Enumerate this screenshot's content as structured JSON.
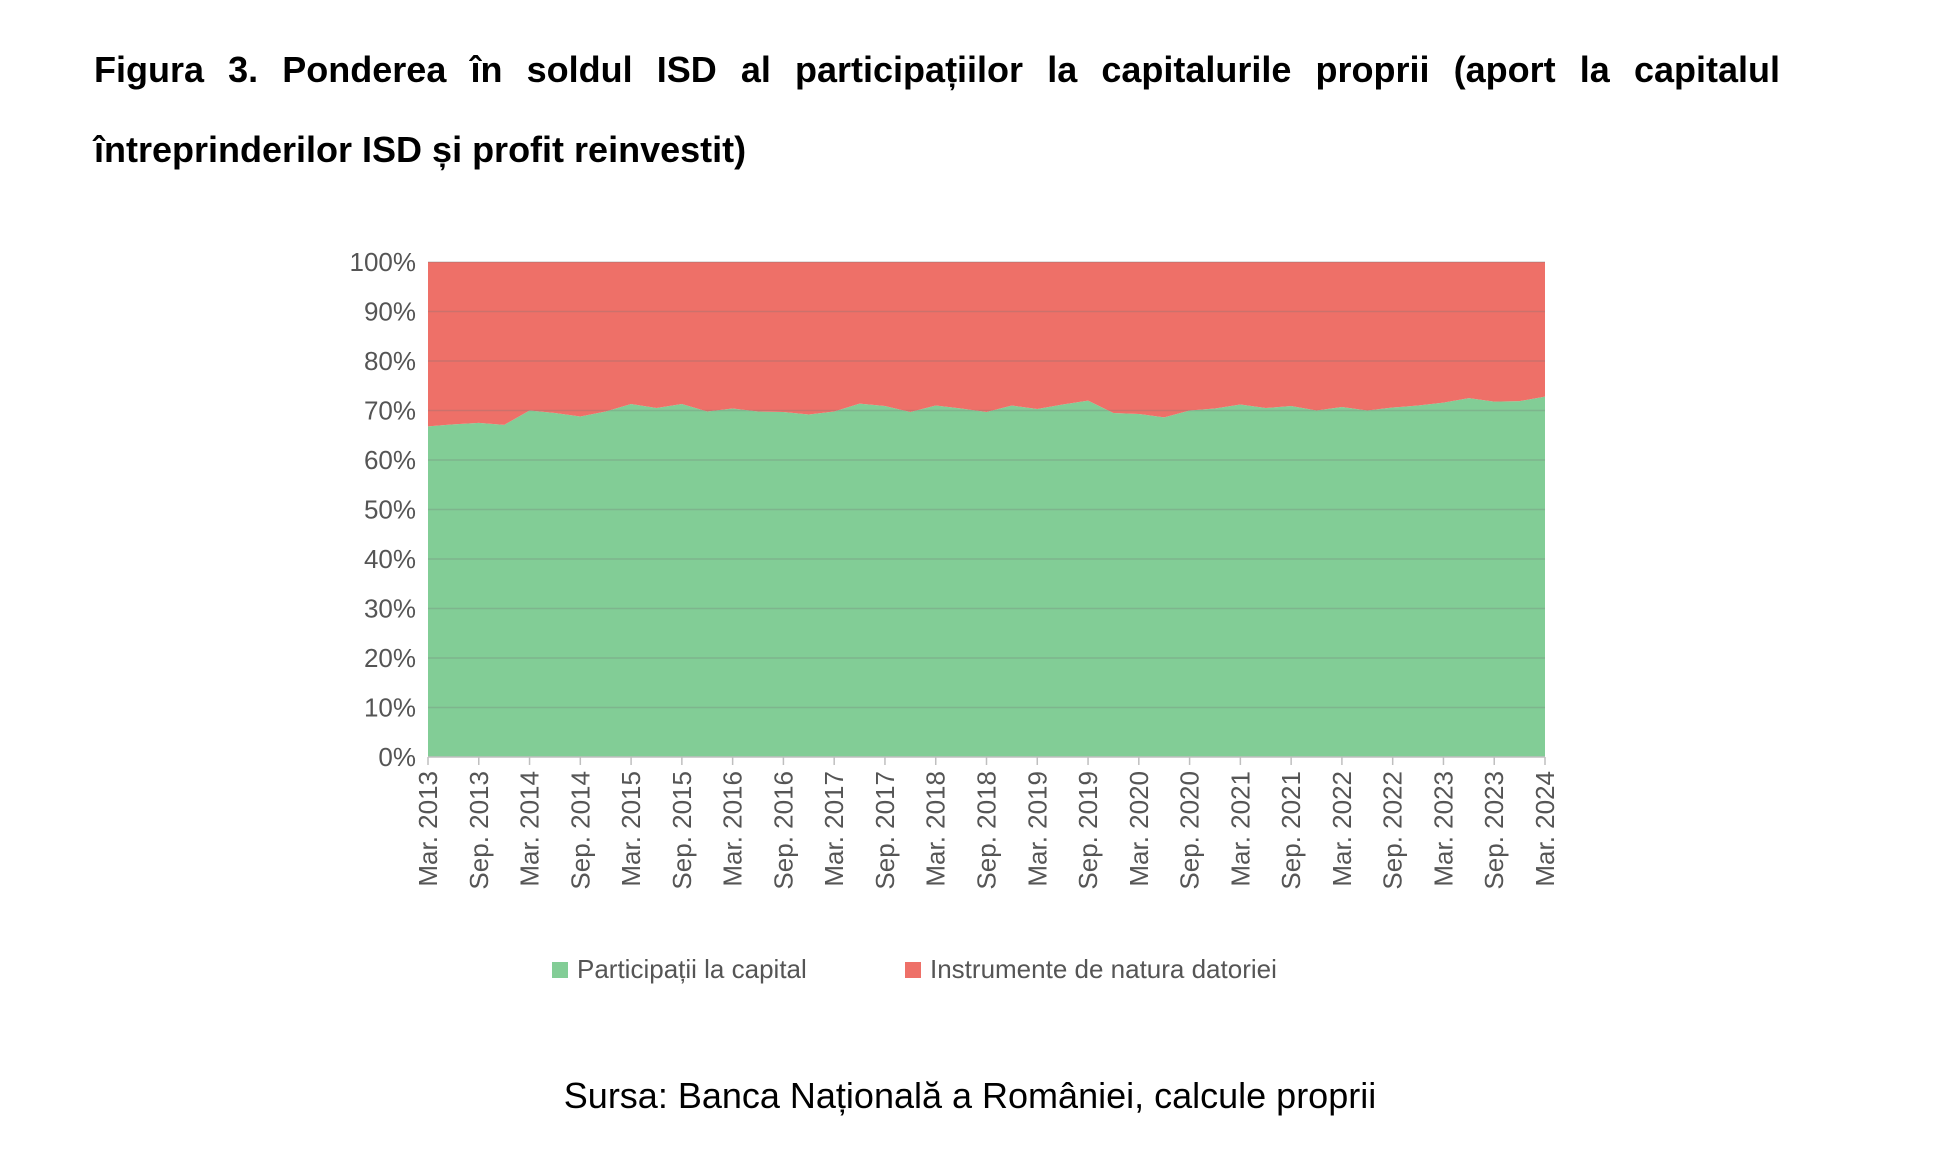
{
  "figure": {
    "title": "Figura 3. Ponderea în soldul ISD al participațiilor la capitalurile proprii (aport la capitalul întreprinderilor ISD și profit reinvestit)",
    "source": "Sursa: Banca Națională a României, calcule proprii"
  },
  "chart_data": {
    "type": "area",
    "stacked": true,
    "percent": true,
    "ylim": [
      0,
      100
    ],
    "yticks": [
      "0%",
      "10%",
      "20%",
      "30%",
      "40%",
      "50%",
      "60%",
      "70%",
      "80%",
      "90%",
      "100%"
    ],
    "x_tick_labels": [
      "Mar. 2013",
      "Sep. 2013",
      "Mar. 2014",
      "Sep. 2014",
      "Mar. 2015",
      "Sep. 2015",
      "Mar. 2016",
      "Sep. 2016",
      "Mar. 2017",
      "Sep. 2017",
      "Mar. 2018",
      "Sep. 2018",
      "Mar. 2019",
      "Sep. 2019",
      "Mar. 2020",
      "Sep. 2020",
      "Mar. 2021",
      "Sep. 2021",
      "Mar. 2022",
      "Sep. 2022",
      "Mar. 2023",
      "Sep. 2023",
      "Mar. 2024"
    ],
    "x_points": [
      "Mar. 2013",
      "Jun. 2013",
      "Sep. 2013",
      "Dec. 2013",
      "Mar. 2014",
      "Jun. 2014",
      "Sep. 2014",
      "Dec. 2014",
      "Mar. 2015",
      "Jun. 2015",
      "Sep. 2015",
      "Dec. 2015",
      "Mar. 2016",
      "Jun. 2016",
      "Sep. 2016",
      "Dec. 2016",
      "Mar. 2017",
      "Jun. 2017",
      "Sep. 2017",
      "Dec. 2017",
      "Mar. 2018",
      "Jun. 2018",
      "Sep. 2018",
      "Dec. 2018",
      "Mar. 2019",
      "Jun. 2019",
      "Sep. 2019",
      "Dec. 2019",
      "Mar. 2020",
      "Jun. 2020",
      "Sep. 2020",
      "Dec. 2020",
      "Mar. 2021",
      "Jun. 2021",
      "Sep. 2021",
      "Dec. 2021",
      "Mar. 2022",
      "Jun. 2022",
      "Sep. 2022",
      "Dec. 2022",
      "Mar. 2023",
      "Jun. 2023",
      "Sep. 2023",
      "Dec. 2023",
      "Mar. 2024"
    ],
    "series": [
      {
        "name": "Participații la capital",
        "color": "#82CD96",
        "values": [
          66.8,
          67.2,
          67.5,
          67.1,
          70.0,
          69.5,
          68.8,
          69.8,
          71.3,
          70.5,
          71.3,
          69.8,
          70.4,
          69.8,
          69.7,
          69.2,
          69.8,
          71.4,
          70.9,
          69.7,
          71.0,
          70.4,
          69.7,
          71.0,
          70.3,
          71.2,
          72.0,
          69.5,
          69.3,
          68.6,
          70.0,
          70.4,
          71.2,
          70.5,
          70.9,
          70.0,
          70.7,
          70.0,
          70.6,
          71.0,
          71.6,
          72.5,
          71.8,
          71.9,
          72.8
        ]
      },
      {
        "name": "Instrumente de natura datoriei",
        "color": "#EE7068",
        "values": [
          33.2,
          32.8,
          32.5,
          32.9,
          30.0,
          30.5,
          31.2,
          30.2,
          28.7,
          29.5,
          28.7,
          30.2,
          29.6,
          30.2,
          30.3,
          30.8,
          30.2,
          28.6,
          29.1,
          30.3,
          29.0,
          29.6,
          30.3,
          29.0,
          29.7,
          28.8,
          28.0,
          30.5,
          30.7,
          31.4,
          30.0,
          29.6,
          28.8,
          29.5,
          29.1,
          30.0,
          29.3,
          30.0,
          29.4,
          29.0,
          28.4,
          27.5,
          28.2,
          28.1,
          27.2
        ]
      }
    ],
    "grid": true,
    "legend_position": "bottom"
  }
}
